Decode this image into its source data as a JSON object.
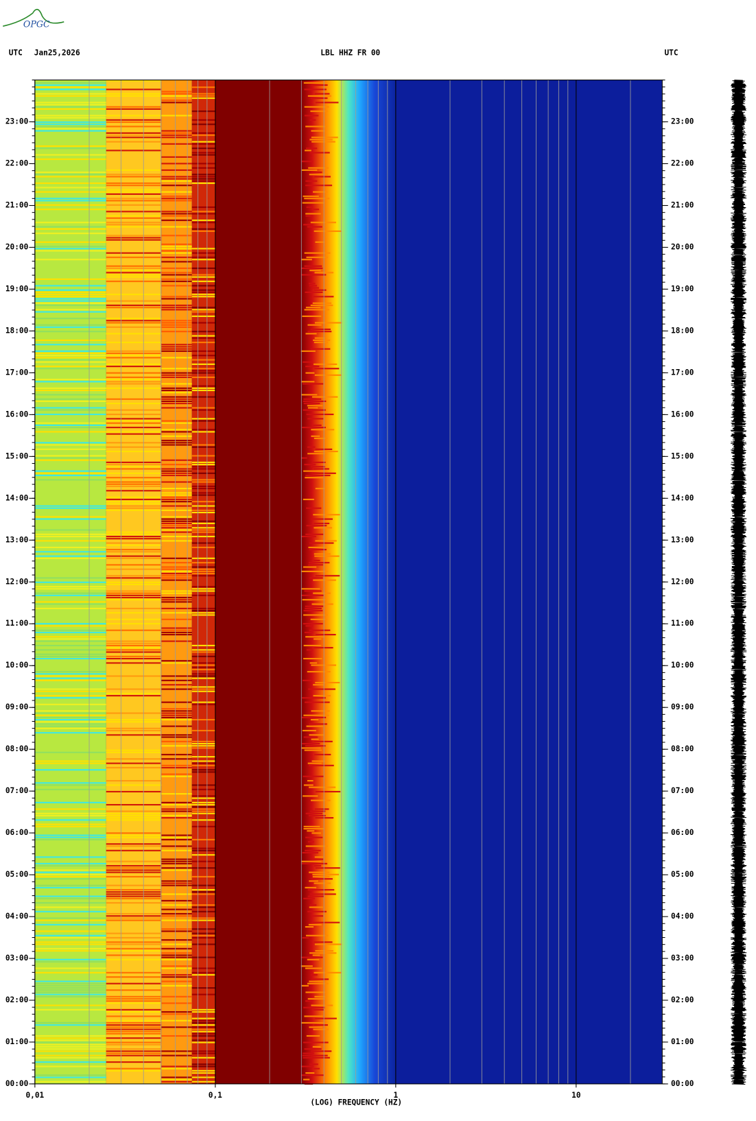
{
  "chart_data": {
    "type": "spectrogram",
    "logo": "OPGC",
    "timezone_label": "UTC",
    "date": "Jan25,2026",
    "title": "LBL HHZ FR 00",
    "xlabel": "(LOG) FREQUENCY (HZ)",
    "xscale": "log",
    "xlim": [
      0.01,
      30
    ],
    "xticks": [
      {
        "value": 0.01,
        "label": "0,01"
      },
      {
        "value": 0.1,
        "label": "0,1"
      },
      1,
      10
    ],
    "ylim": [
      0,
      24
    ],
    "yticks": [
      {
        "value": 0,
        "label": "00:00"
      },
      {
        "value": 1,
        "label": "01:00"
      },
      {
        "value": 2,
        "label": "02:00"
      },
      {
        "value": 3,
        "label": "03:00"
      },
      {
        "value": 4,
        "label": "04:00"
      },
      {
        "value": 5,
        "label": "05:00"
      },
      {
        "value": 6,
        "label": "06:00"
      },
      {
        "value": 7,
        "label": "07:00"
      },
      {
        "value": 8,
        "label": "08:00"
      },
      {
        "value": 9,
        "label": "09:00"
      },
      {
        "value": 10,
        "label": "10:00"
      },
      {
        "value": 11,
        "label": "11:00"
      },
      {
        "value": 12,
        "label": "12:00"
      },
      {
        "value": 13,
        "label": "13:00"
      },
      {
        "value": 14,
        "label": "14:00"
      },
      {
        "value": 15,
        "label": "15:00"
      },
      {
        "value": 16,
        "label": "16:00"
      },
      {
        "value": 17,
        "label": "17:00"
      },
      {
        "value": 18,
        "label": "18:00"
      },
      {
        "value": 19,
        "label": "19:00"
      },
      {
        "value": 20,
        "label": "20:00"
      },
      {
        "value": 21,
        "label": "21:00"
      },
      {
        "value": 22,
        "label": "22:00"
      },
      {
        "value": 23,
        "label": "23:00"
      }
    ],
    "grid": true
  }
}
